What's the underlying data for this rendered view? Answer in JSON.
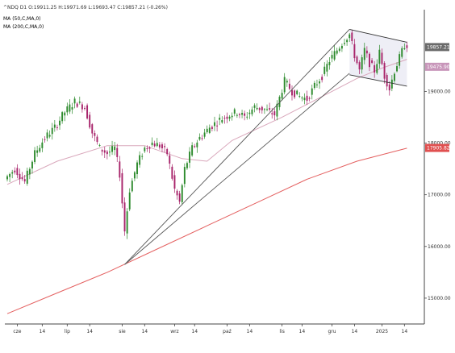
{
  "legend": {
    "info": "^NDQ D1  O:19911.25  H:19971.69  L:19693.47  C:19857.21  (-0.26%)",
    "ma50": "MA (50,C,MA,0)",
    "ma200": "MA (200,C,MA,0)"
  },
  "colors": {
    "up": "#2e8b2e",
    "down": "#a8246b",
    "ma50": "#d9a7bb",
    "ma200": "#e46060",
    "trendline": "#555555",
    "channel": "#333333",
    "channel_fill": "#eeeef6",
    "axis": "#444444",
    "price_label_bg": "#6a6a6a",
    "ma50_label_bg": "#c896ba",
    "ma200_label_bg": "#e05050"
  },
  "chart_data": {
    "type": "candlestick",
    "symbol": "^NDQ",
    "timeframe": "D1",
    "ylim": [
      14500,
      20300
    ],
    "y_ticks": [
      15000,
      16000,
      17000,
      18000,
      19000
    ],
    "y_tick_labels": [
      "15000.00",
      "16000.00",
      "17000.00",
      "18000.00",
      "19000.00"
    ],
    "x_ticks": [
      {
        "label": "cze",
        "bar": 4
      },
      {
        "label": "14",
        "bar": 14
      },
      {
        "label": "lip",
        "bar": 24
      },
      {
        "label": "14",
        "bar": 33
      },
      {
        "label": "sie",
        "bar": 46
      },
      {
        "label": "14",
        "bar": 55
      },
      {
        "label": "wrz",
        "bar": 67
      },
      {
        "label": "14",
        "bar": 75
      },
      {
        "label": "paź",
        "bar": 88
      },
      {
        "label": "14",
        "bar": 97
      },
      {
        "label": "lis",
        "bar": 110
      },
      {
        "label": "14",
        "bar": 118
      },
      {
        "label": "gru",
        "bar": 130
      },
      {
        "label": "14",
        "bar": 139
      },
      {
        "label": "2025",
        "bar": 150
      },
      {
        "label": "14",
        "bar": 159
      }
    ],
    "anchors": [
      [
        0,
        17300
      ],
      [
        4,
        17500
      ],
      [
        8,
        17250
      ],
      [
        12,
        17800
      ],
      [
        16,
        18100
      ],
      [
        20,
        18300
      ],
      [
        24,
        18600
      ],
      [
        28,
        18800
      ],
      [
        32,
        18700
      ],
      [
        35,
        18200
      ],
      [
        38,
        17900
      ],
      [
        41,
        17800
      ],
      [
        44,
        17900
      ],
      [
        46,
        17400
      ],
      [
        48,
        16300
      ],
      [
        50,
        17100
      ],
      [
        53,
        17600
      ],
      [
        56,
        17900
      ],
      [
        59,
        18000
      ],
      [
        62,
        17950
      ],
      [
        65,
        17800
      ],
      [
        68,
        17100
      ],
      [
        70,
        16850
      ],
      [
        72,
        17500
      ],
      [
        75,
        17900
      ],
      [
        78,
        18100
      ],
      [
        82,
        18300
      ],
      [
        86,
        18450
      ],
      [
        90,
        18550
      ],
      [
        93,
        18600
      ],
      [
        96,
        18500
      ],
      [
        100,
        18700
      ],
      [
        104,
        18650
      ],
      [
        108,
        18550
      ],
      [
        112,
        19200
      ],
      [
        115,
        19000
      ],
      [
        118,
        18900
      ],
      [
        121,
        18850
      ],
      [
        124,
        19100
      ],
      [
        127,
        19300
      ],
      [
        130,
        19600
      ],
      [
        133,
        19800
      ],
      [
        136,
        20000
      ],
      [
        138,
        20100
      ],
      [
        140,
        19700
      ],
      [
        142,
        19400
      ],
      [
        144,
        19800
      ],
      [
        146,
        19550
      ],
      [
        148,
        19400
      ],
      [
        150,
        19750
      ],
      [
        152,
        19300
      ],
      [
        154,
        19050
      ],
      [
        156,
        19400
      ],
      [
        158,
        19650
      ],
      [
        160,
        19900
      ]
    ],
    "ma50": [
      [
        0,
        17200
      ],
      [
        20,
        17650
      ],
      [
        40,
        17950
      ],
      [
        55,
        17950
      ],
      [
        70,
        17700
      ],
      [
        80,
        17650
      ],
      [
        90,
        18050
      ],
      [
        110,
        18500
      ],
      [
        130,
        19000
      ],
      [
        140,
        19250
      ],
      [
        150,
        19450
      ],
      [
        160,
        19620
      ]
    ],
    "ma200": [
      [
        0,
        14700
      ],
      [
        20,
        15100
      ],
      [
        40,
        15500
      ],
      [
        60,
        15950
      ],
      [
        80,
        16400
      ],
      [
        100,
        16850
      ],
      [
        120,
        17300
      ],
      [
        140,
        17650
      ],
      [
        160,
        17900
      ]
    ],
    "trendlines": [
      {
        "from": [
          47,
          15650
        ],
        "to": [
          137,
          20200
        ]
      },
      {
        "from": [
          47,
          15650
        ],
        "to": [
          137,
          19350
        ]
      }
    ],
    "channel": {
      "upper": [
        [
          137,
          20200
        ],
        [
          160,
          19950
        ]
      ],
      "lower": [
        [
          137,
          19320
        ],
        [
          160,
          19100
        ]
      ]
    },
    "labels": [
      {
        "text": "19857.21",
        "value": 19857.21,
        "kind": "price"
      },
      {
        "text": "19475.90",
        "value": 19475.9,
        "kind": "ma50"
      },
      {
        "text": "17905.82",
        "value": 17905.82,
        "kind": "ma200"
      }
    ]
  }
}
